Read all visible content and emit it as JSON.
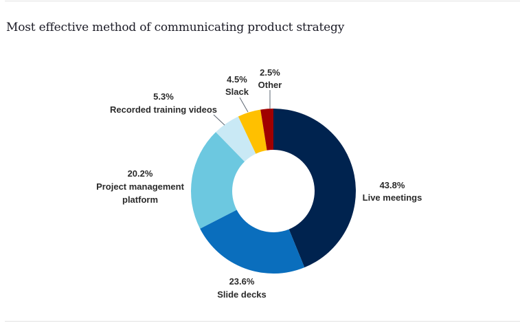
{
  "chart_data": {
    "type": "pie",
    "variant": "donut",
    "title": "Most effective method of communicating product strategy",
    "unit": "%",
    "start": "top",
    "direction": "clockwise",
    "slices": [
      {
        "label": "Live meetings",
        "value": 43.8,
        "value_label": "43.8%",
        "color": "#00234f"
      },
      {
        "label": "Slide decks",
        "value": 23.6,
        "value_label": "23.6%",
        "color": "#0a6ebd"
      },
      {
        "label": "Project management platform",
        "label_lines": [
          "Project management",
          "platform"
        ],
        "value": 20.2,
        "value_label": "20.2%",
        "color": "#6cc8e0"
      },
      {
        "label": "Recorded training videos",
        "value": 5.3,
        "value_label": "5.3%",
        "color": "#c9e9f5"
      },
      {
        "label": "Slack",
        "value": 4.5,
        "value_label": "4.5%",
        "color": "#ffc000"
      },
      {
        "label": "Other",
        "value": 2.5,
        "value_label": "2.5%",
        "color": "#a00000"
      }
    ],
    "legend": "none"
  }
}
